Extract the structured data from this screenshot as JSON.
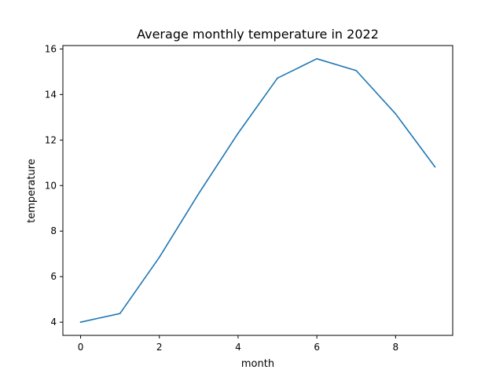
{
  "chart_data": {
    "type": "line",
    "title": "Average monthly temperature in 2022",
    "xlabel": "month",
    "ylabel": "temperature",
    "xlim": [
      -0.45,
      9.45
    ],
    "ylim": [
      3.42,
      16.15
    ],
    "xticks": [
      0,
      2,
      4,
      6,
      8
    ],
    "yticks": [
      4,
      6,
      8,
      10,
      12,
      14,
      16
    ],
    "grid": false,
    "legend": "none",
    "series": [
      {
        "color": "#1f77b4",
        "x": [
          0,
          1,
          2,
          3,
          4,
          5,
          6,
          7,
          8,
          9
        ],
        "y": [
          4.0,
          4.38,
          6.85,
          9.65,
          12.3,
          14.72,
          15.57,
          15.05,
          13.15,
          10.82
        ]
      }
    ]
  }
}
